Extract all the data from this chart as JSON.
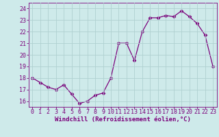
{
  "x": [
    0,
    1,
    2,
    3,
    4,
    5,
    6,
    7,
    8,
    9,
    10,
    11,
    12,
    13,
    14,
    15,
    16,
    17,
    18,
    19,
    20,
    21,
    22,
    23
  ],
  "y": [
    18.0,
    17.6,
    17.2,
    17.0,
    17.4,
    16.6,
    15.8,
    16.0,
    16.5,
    16.7,
    18.0,
    21.0,
    21.0,
    19.5,
    22.0,
    23.2,
    23.2,
    23.4,
    23.3,
    23.8,
    23.3,
    22.7,
    21.7,
    19.0
  ],
  "line_color": "#7b007b",
  "marker": "D",
  "marker_size": 2.5,
  "bg_color": "#ceeaea",
  "grid_color": "#b0d0d0",
  "xlabel": "Windchill (Refroidissement éolien,°C)",
  "xlabel_color": "#7b007b",
  "xlabel_fontsize": 6.5,
  "tick_color": "#7b007b",
  "tick_fontsize": 6.0,
  "ylim": [
    15.5,
    24.5
  ],
  "xlim": [
    -0.5,
    23.5
  ],
  "yticks": [
    16,
    17,
    18,
    19,
    20,
    21,
    22,
    23,
    24
  ],
  "xticks": [
    0,
    1,
    2,
    3,
    4,
    5,
    6,
    7,
    8,
    9,
    10,
    11,
    12,
    13,
    14,
    15,
    16,
    17,
    18,
    19,
    20,
    21,
    22,
    23
  ]
}
